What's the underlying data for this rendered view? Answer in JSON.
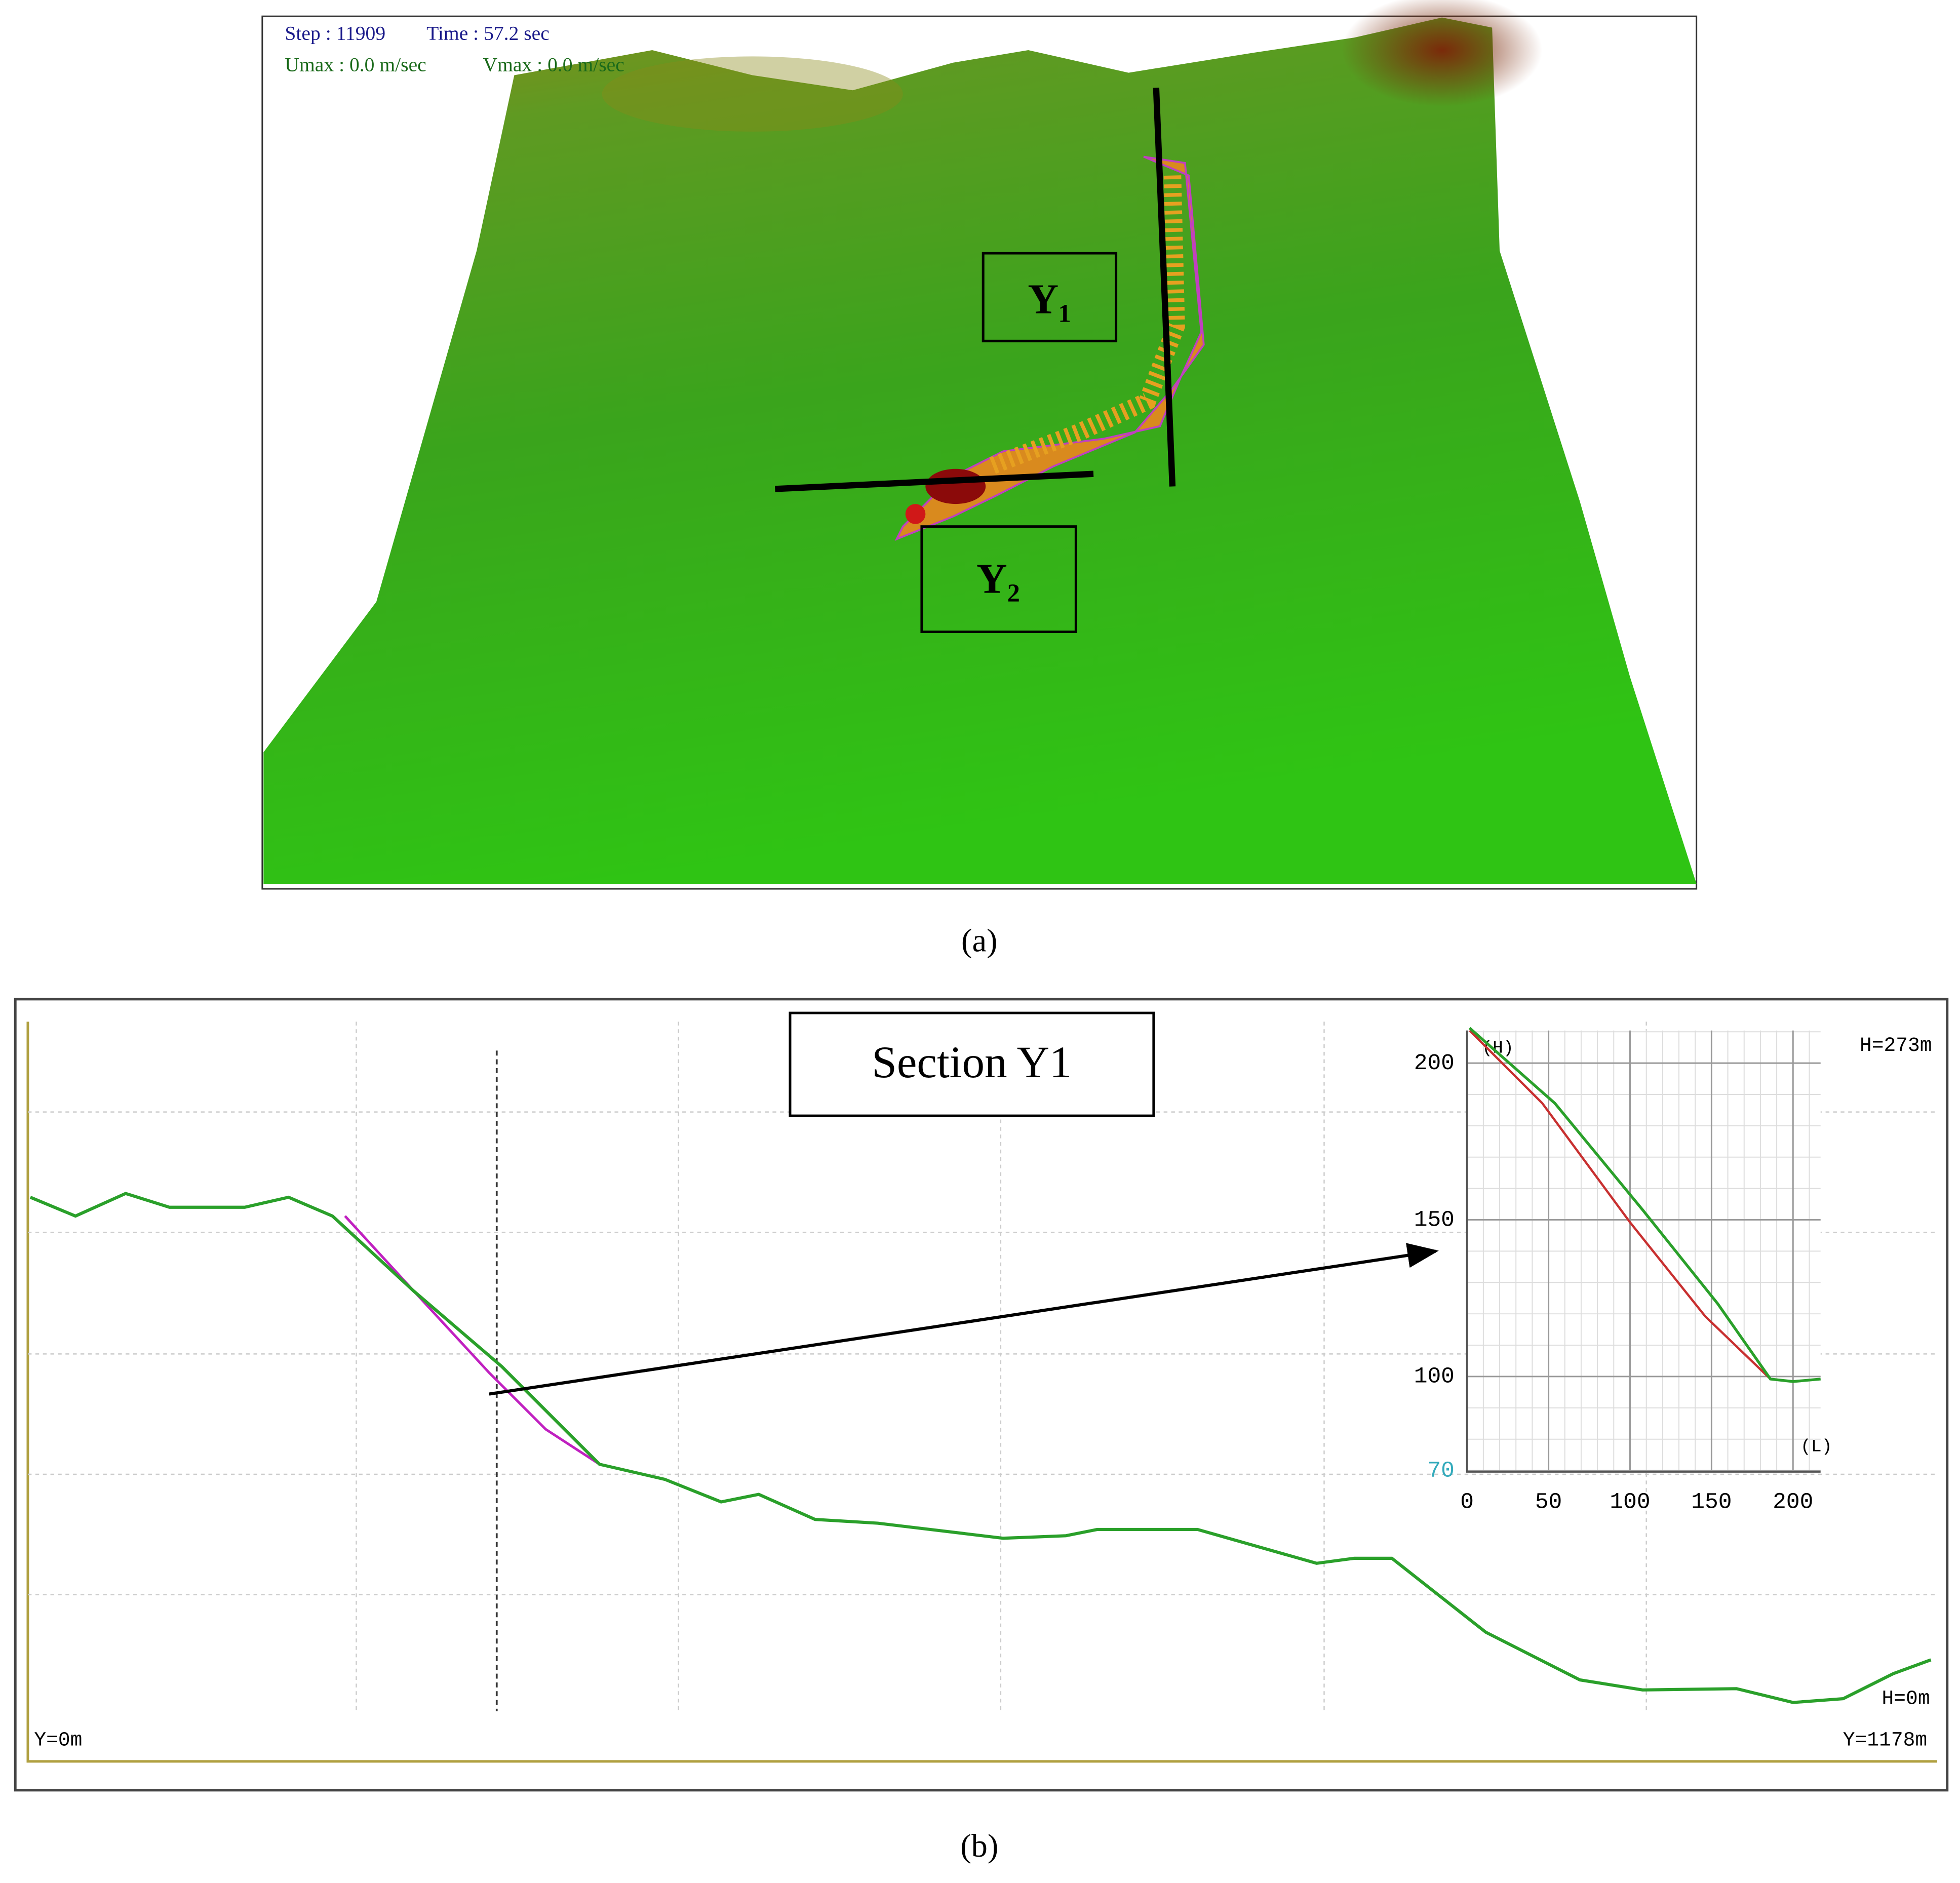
{
  "panel_a": {
    "step": "Step : 11909",
    "time": "Time : 57.2 sec",
    "umax": "Umax : 0.0 m/sec",
    "vmax": "Vmax : 0.0 m/sec",
    "label_y1": "Y₁",
    "label_y2": "Y₂",
    "caption": "(a)"
  },
  "panel_b": {
    "section_title": "Section Y1",
    "h_top": "H=273m",
    "h_bottom": "H=0m",
    "y_start": "Y=0m",
    "y_end": "Y=1178m",
    "inset": {
      "y_axis_label": "(H)",
      "x_axis_label": "(L)",
      "yticks": [
        200,
        150,
        100,
        70
      ],
      "xticks": [
        0,
        50,
        100,
        150,
        200
      ]
    },
    "caption": "(b)"
  }
}
